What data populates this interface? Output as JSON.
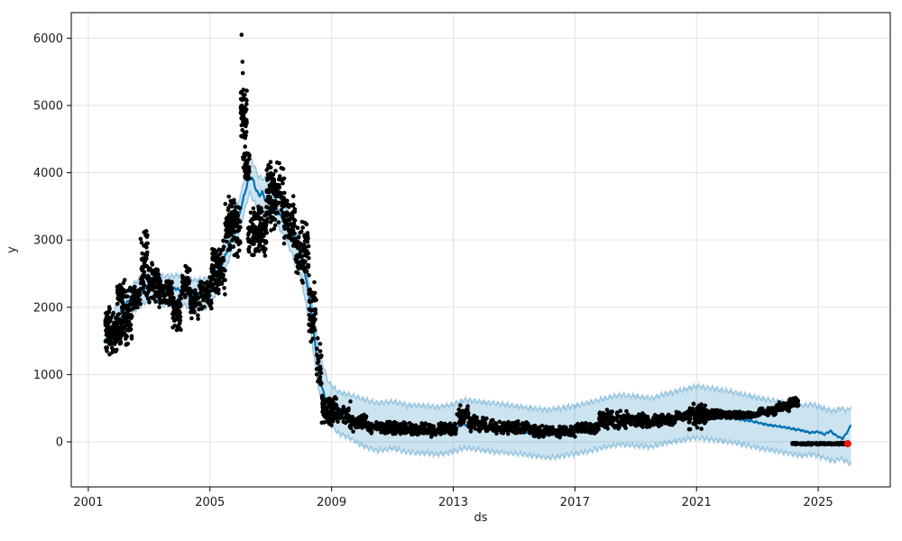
{
  "chart_data": {
    "type": "line",
    "title": "",
    "xlabel": "ds",
    "ylabel": "y",
    "x_ticks": [
      2001,
      2005,
      2009,
      2013,
      2017,
      2021,
      2025
    ],
    "y_ticks": [
      0,
      1000,
      2000,
      3000,
      4000,
      5000,
      6000
    ],
    "x_range": [
      2000.44,
      2027.37
    ],
    "y_range": [
      -670,
      6380
    ],
    "grid": true,
    "legend": "none",
    "style": {
      "forecast_line": "#0072B2",
      "band_fill": "rgba(0,114,178,0.2)",
      "band_edge": "rgba(0,114,178,0.32)",
      "observed_dots": "#000000",
      "latest_dot": "#ee1111",
      "grid_color": "#e3e3e3",
      "spine_color": "#000000",
      "text_color": "#1a1a1a"
    },
    "series": [
      {
        "name": "forecast_trend",
        "points": [
          [
            2001.56,
            1520
          ],
          [
            2001.7,
            1630
          ],
          [
            2001.85,
            1760
          ],
          [
            2002.0,
            1880
          ],
          [
            2002.15,
            2000
          ],
          [
            2002.35,
            2110
          ],
          [
            2002.55,
            2140
          ],
          [
            2002.75,
            2230
          ],
          [
            2002.95,
            2320
          ],
          [
            2003.15,
            2330
          ],
          [
            2003.35,
            2270
          ],
          [
            2003.55,
            2230
          ],
          [
            2003.75,
            2280
          ],
          [
            2003.95,
            2270
          ],
          [
            2004.15,
            2190
          ],
          [
            2004.35,
            2160
          ],
          [
            2004.55,
            2210
          ],
          [
            2004.75,
            2170
          ],
          [
            2004.95,
            2200
          ],
          [
            2005.15,
            2330
          ],
          [
            2005.35,
            2580
          ],
          [
            2005.55,
            2820
          ],
          [
            2005.75,
            3060
          ],
          [
            2005.95,
            3340
          ],
          [
            2006.1,
            3620
          ],
          [
            2006.3,
            3960
          ],
          [
            2006.42,
            3890
          ],
          [
            2006.52,
            3740
          ],
          [
            2006.62,
            3660
          ],
          [
            2006.72,
            3710
          ],
          [
            2006.85,
            3570
          ],
          [
            2007.0,
            3630
          ],
          [
            2007.15,
            3490
          ],
          [
            2007.3,
            3380
          ],
          [
            2007.5,
            3240
          ],
          [
            2007.7,
            3110
          ],
          [
            2007.9,
            2900
          ],
          [
            2008.05,
            2660
          ],
          [
            2008.2,
            2340
          ],
          [
            2008.35,
            1900
          ],
          [
            2008.5,
            1310
          ],
          [
            2008.65,
            860
          ],
          [
            2008.8,
            630
          ],
          [
            2008.95,
            520
          ],
          [
            2009.1,
            440
          ],
          [
            2009.3,
            390
          ],
          [
            2009.5,
            420
          ],
          [
            2009.7,
            330
          ],
          [
            2009.9,
            280
          ],
          [
            2010.1,
            260
          ],
          [
            2010.4,
            235
          ],
          [
            2010.7,
            210
          ],
          [
            2011.0,
            230
          ],
          [
            2011.3,
            195
          ],
          [
            2011.6,
            215
          ],
          [
            2011.9,
            190
          ],
          [
            2012.2,
            175
          ],
          [
            2012.5,
            165
          ],
          [
            2012.8,
            155
          ],
          [
            2013.05,
            175
          ],
          [
            2013.3,
            270
          ],
          [
            2013.5,
            235
          ],
          [
            2013.75,
            245
          ],
          [
            2014.0,
            230
          ],
          [
            2014.3,
            205
          ],
          [
            2014.6,
            190
          ],
          [
            2014.9,
            175
          ],
          [
            2015.2,
            160
          ],
          [
            2015.5,
            135
          ],
          [
            2015.8,
            110
          ],
          [
            2016.1,
            95
          ],
          [
            2016.4,
            120
          ],
          [
            2016.7,
            150
          ],
          [
            2017.0,
            170
          ],
          [
            2017.3,
            195
          ],
          [
            2017.6,
            225
          ],
          [
            2017.9,
            265
          ],
          [
            2018.2,
            310
          ],
          [
            2018.5,
            335
          ],
          [
            2018.8,
            310
          ],
          [
            2019.1,
            330
          ],
          [
            2019.4,
            295
          ],
          [
            2019.7,
            265
          ],
          [
            2019.95,
            310
          ],
          [
            2020.2,
            340
          ],
          [
            2020.5,
            370
          ],
          [
            2020.8,
            405
          ],
          [
            2021.0,
            510
          ],
          [
            2021.2,
            470
          ],
          [
            2021.5,
            425
          ],
          [
            2021.8,
            385
          ],
          [
            2022.1,
            355
          ],
          [
            2022.4,
            335
          ],
          [
            2022.7,
            315
          ],
          [
            2023.0,
            290
          ],
          [
            2023.3,
            255
          ],
          [
            2023.6,
            235
          ],
          [
            2023.9,
            215
          ],
          [
            2024.2,
            190
          ],
          [
            2024.5,
            165
          ],
          [
            2024.75,
            135
          ],
          [
            2025.0,
            150
          ],
          [
            2025.2,
            110
          ],
          [
            2025.4,
            160
          ],
          [
            2025.6,
            90
          ],
          [
            2025.8,
            45
          ],
          [
            2025.95,
            140
          ],
          [
            2026.08,
            250
          ]
        ]
      },
      {
        "name": "uncertainty_band",
        "points": [
          [
            2001.56,
            1340,
            1700
          ],
          [
            2002.0,
            1690,
            2090
          ],
          [
            2002.5,
            1930,
            2350
          ],
          [
            2003.0,
            2120,
            2550
          ],
          [
            2003.5,
            2030,
            2460
          ],
          [
            2004.0,
            2060,
            2480
          ],
          [
            2004.5,
            1960,
            2400
          ],
          [
            2005.0,
            2000,
            2440
          ],
          [
            2005.5,
            2550,
            3000
          ],
          [
            2006.0,
            3180,
            3660
          ],
          [
            2006.3,
            3700,
            4280
          ],
          [
            2006.6,
            3440,
            3940
          ],
          [
            2007.0,
            3390,
            3880
          ],
          [
            2007.5,
            3010,
            3490
          ],
          [
            2008.0,
            2430,
            2930
          ],
          [
            2008.3,
            1660,
            2270
          ],
          [
            2008.6,
            700,
            1310
          ],
          [
            2008.9,
            290,
            890
          ],
          [
            2009.2,
            130,
            750
          ],
          [
            2009.6,
            50,
            700
          ],
          [
            2010.0,
            -60,
            640
          ],
          [
            2010.5,
            -140,
            580
          ],
          [
            2011.0,
            -100,
            600
          ],
          [
            2011.5,
            -160,
            550
          ],
          [
            2012.0,
            -170,
            540
          ],
          [
            2012.5,
            -190,
            520
          ],
          [
            2013.0,
            -150,
            560
          ],
          [
            2013.4,
            -90,
            630
          ],
          [
            2013.8,
            -120,
            600
          ],
          [
            2014.3,
            -150,
            580
          ],
          [
            2014.8,
            -170,
            550
          ],
          [
            2015.3,
            -190,
            520
          ],
          [
            2015.8,
            -220,
            490
          ],
          [
            2016.2,
            -240,
            480
          ],
          [
            2016.6,
            -210,
            510
          ],
          [
            2017.0,
            -180,
            540
          ],
          [
            2017.5,
            -140,
            590
          ],
          [
            2018.0,
            -80,
            650
          ],
          [
            2018.5,
            -40,
            700
          ],
          [
            2019.0,
            -60,
            680
          ],
          [
            2019.5,
            -80,
            650
          ],
          [
            2020.0,
            -20,
            720
          ],
          [
            2020.5,
            20,
            770
          ],
          [
            2021.0,
            60,
            830
          ],
          [
            2021.5,
            30,
            800
          ],
          [
            2022.0,
            0,
            760
          ],
          [
            2022.5,
            -40,
            710
          ],
          [
            2023.0,
            -90,
            660
          ],
          [
            2023.5,
            -130,
            620
          ],
          [
            2024.0,
            -170,
            580
          ],
          [
            2024.4,
            -210,
            540
          ],
          [
            2024.8,
            -190,
            560
          ],
          [
            2025.2,
            -240,
            500
          ],
          [
            2025.5,
            -290,
            460
          ],
          [
            2025.75,
            -250,
            500
          ],
          [
            2025.95,
            -300,
            470
          ],
          [
            2026.08,
            -350,
            520
          ]
        ]
      },
      {
        "name": "observed_clusters",
        "clusters": [
          [
            2001.56,
            2001.75,
            1250,
            2050,
            70
          ],
          [
            2001.75,
            2002.1,
            1300,
            1950,
            100
          ],
          [
            2001.95,
            2002.2,
            1900,
            2420,
            35
          ],
          [
            2002.1,
            2002.45,
            1350,
            2380,
            85
          ],
          [
            2002.45,
            2002.72,
            1900,
            2320,
            50
          ],
          [
            2002.72,
            2002.95,
            2000,
            3260,
            50
          ],
          [
            2002.95,
            2003.3,
            2050,
            2700,
            70
          ],
          [
            2003.3,
            2003.75,
            1950,
            2560,
            70
          ],
          [
            2003.75,
            2004.05,
            1580,
            2300,
            55
          ],
          [
            2004.05,
            2004.35,
            2100,
            2620,
            55
          ],
          [
            2004.35,
            2004.65,
            1800,
            2300,
            50
          ],
          [
            2004.65,
            2005.05,
            1950,
            2480,
            65
          ],
          [
            2005.05,
            2005.5,
            2080,
            3050,
            90
          ],
          [
            2005.5,
            2006.0,
            2720,
            3660,
            110
          ],
          [
            2006.0,
            2006.22,
            4450,
            5350,
            65
          ],
          [
            2006.08,
            2006.3,
            3800,
            4420,
            45
          ],
          [
            2006.25,
            2006.9,
            2700,
            3550,
            130
          ],
          [
            2006.85,
            2007.45,
            3080,
            4230,
            130
          ],
          [
            2007.4,
            2007.8,
            2860,
            3700,
            75
          ],
          [
            2007.8,
            2008.25,
            2330,
            3300,
            85
          ],
          [
            2008.25,
            2008.5,
            1400,
            2500,
            50
          ],
          [
            2008.5,
            2008.68,
            800,
            1560,
            28
          ],
          [
            2008.68,
            2009.15,
            210,
            700,
            90
          ],
          [
            2009.15,
            2009.6,
            250,
            560,
            45
          ],
          [
            2009.6,
            2010.2,
            140,
            430,
            70
          ],
          [
            2010.2,
            2011.2,
            110,
            330,
            120
          ],
          [
            2011.2,
            2012.2,
            90,
            300,
            120
          ],
          [
            2012.2,
            2013.1,
            70,
            290,
            110
          ],
          [
            2013.12,
            2013.5,
            230,
            545,
            55
          ],
          [
            2013.5,
            2014.3,
            140,
            400,
            90
          ],
          [
            2014.3,
            2015.5,
            110,
            320,
            130
          ],
          [
            2015.5,
            2017.0,
            60,
            250,
            160
          ],
          [
            2017.0,
            2017.78,
            110,
            300,
            85
          ],
          [
            2017.8,
            2018.7,
            170,
            490,
            100
          ],
          [
            2018.7,
            2019.8,
            210,
            430,
            110
          ],
          [
            2019.8,
            2020.3,
            230,
            430,
            60
          ],
          [
            2020.3,
            2020.75,
            300,
            460,
            55
          ],
          [
            2020.75,
            2021.3,
            175,
            610,
            90
          ],
          [
            2021.3,
            2021.9,
            330,
            480,
            80
          ],
          [
            2021.9,
            2023.05,
            345,
            455,
            170
          ],
          [
            2023.05,
            2023.6,
            390,
            510,
            80
          ],
          [
            2023.6,
            2024.05,
            440,
            590,
            70
          ],
          [
            2024.05,
            2024.35,
            520,
            665,
            50
          ],
          [
            2024.15,
            2025.95,
            -45,
            -12,
            200
          ]
        ],
        "outliers": [
          [
            2006.04,
            6050
          ],
          [
            2006.07,
            5650
          ],
          [
            2006.08,
            5480
          ],
          [
            2009.62,
            600
          ]
        ]
      },
      {
        "name": "latest_point",
        "point": [
          2025.97,
          -28
        ]
      }
    ]
  }
}
